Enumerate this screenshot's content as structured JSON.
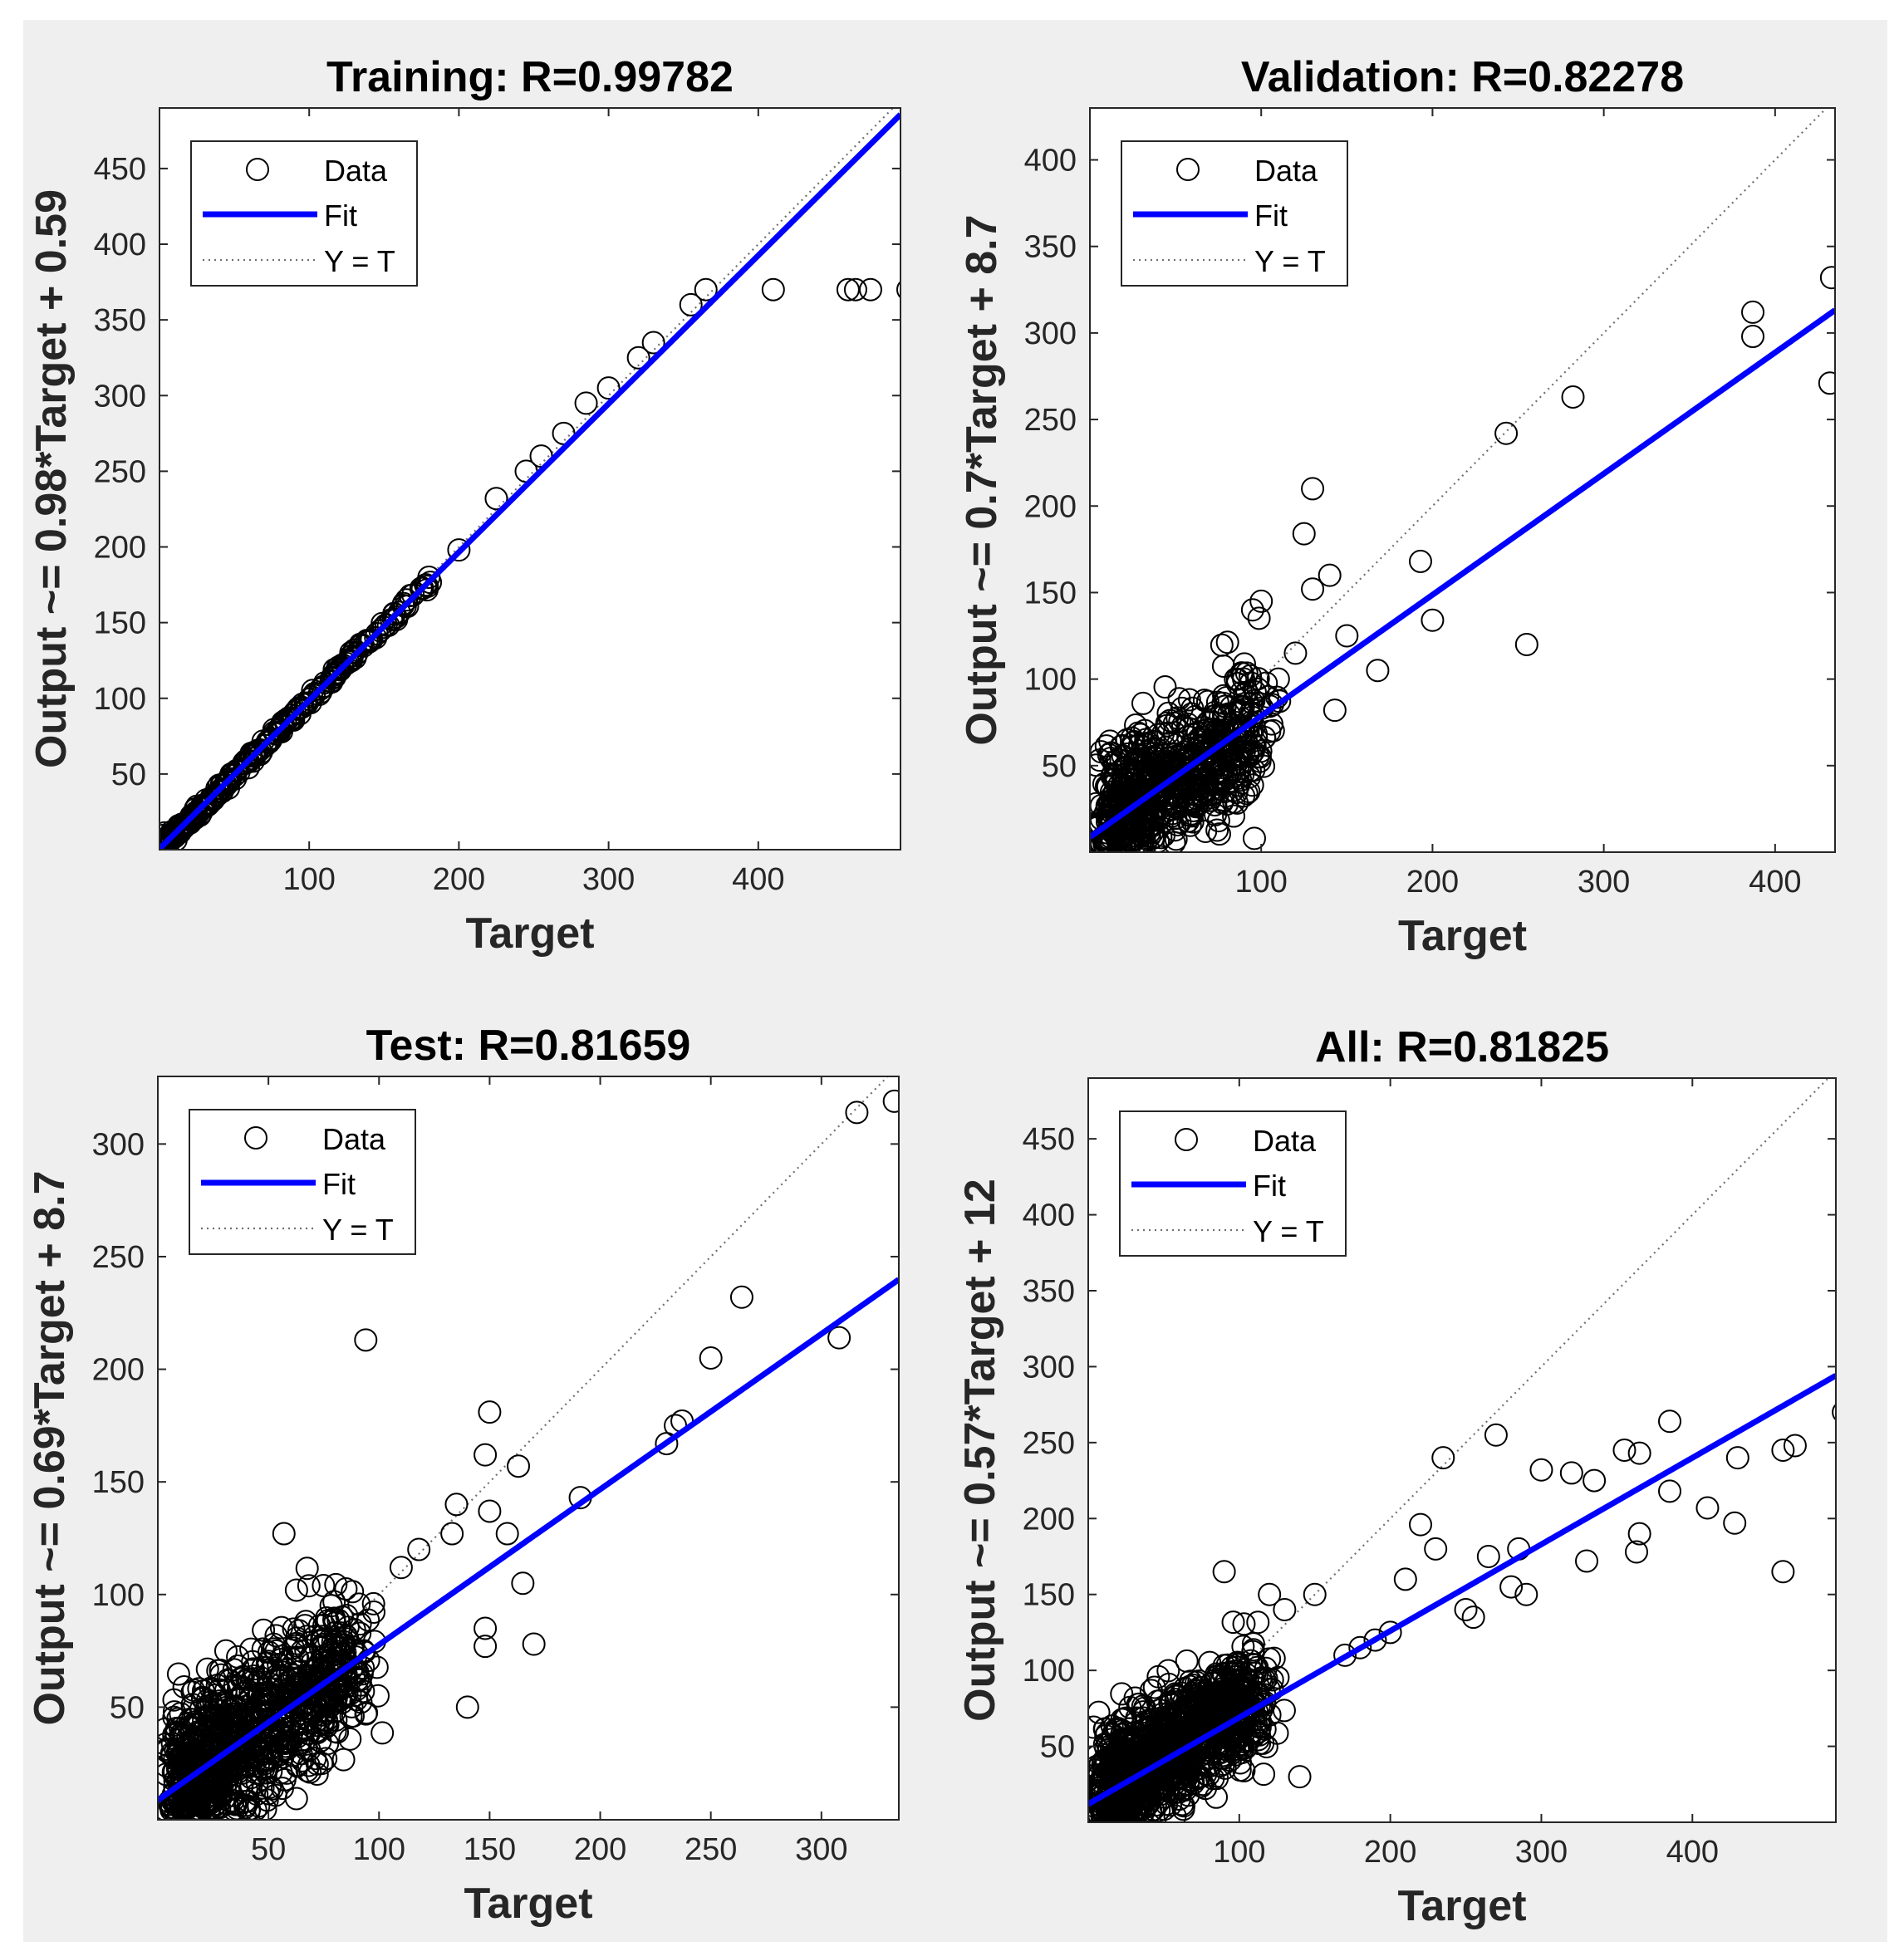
{
  "chart_data": [
    {
      "type": "scatter",
      "id": "training",
      "title": "Training: R=0.99782",
      "xlabel": "Target",
      "ylabel": "Output ~= 0.98*Target + 0.59",
      "xlim": [
        0,
        495
      ],
      "ylim": [
        0,
        490
      ],
      "xticks": [
        100,
        200,
        300,
        400
      ],
      "yticks": [
        50,
        100,
        150,
        200,
        250,
        300,
        350,
        400,
        450
      ],
      "fit": {
        "slope": 0.98,
        "intercept": 0.59,
        "color": "#0000ff"
      },
      "legend": {
        "entries": [
          "Data",
          "Fit",
          "Y = T"
        ],
        "location": "top-left"
      },
      "points": [
        [
          2,
          3
        ],
        [
          5,
          5
        ],
        [
          10,
          10
        ],
        [
          20,
          20
        ],
        [
          35,
          34
        ],
        [
          50,
          49
        ],
        [
          65,
          64
        ],
        [
          80,
          79
        ],
        [
          95,
          94
        ],
        [
          110,
          108
        ],
        [
          125,
          123
        ],
        [
          140,
          138
        ],
        [
          155,
          152
        ],
        [
          165,
          165
        ],
        [
          180,
          180
        ],
        [
          200,
          198
        ],
        [
          225,
          232
        ],
        [
          245,
          250
        ],
        [
          255,
          260
        ],
        [
          270,
          275
        ],
        [
          285,
          295
        ],
        [
          300,
          305
        ],
        [
          320,
          325
        ],
        [
          330,
          335
        ],
        [
          355,
          360
        ],
        [
          365,
          370
        ],
        [
          410,
          370
        ],
        [
          460,
          370
        ],
        [
          465,
          370
        ],
        [
          475,
          370
        ],
        [
          500,
          370
        ]
      ],
      "diag_points": 260,
      "scatter": {
        "outliers": [
          [
            135,
            120
          ],
          [
            150,
            148
          ]
        ]
      }
    },
    {
      "type": "scatter",
      "id": "validation",
      "title": "Validation: R=0.82278",
      "xlabel": "Target",
      "ylabel": "Output ~= 0.7*Target + 8.7",
      "xlim": [
        0,
        435
      ],
      "ylim": [
        0,
        430
      ],
      "xticks": [
        100,
        200,
        300,
        400
      ],
      "yticks": [
        50,
        100,
        150,
        200,
        250,
        300,
        350,
        400
      ],
      "fit": {
        "slope": 0.7,
        "intercept": 8.7,
        "color": "#0000ff"
      },
      "legend": {
        "entries": [
          "Data",
          "Fit",
          "Y = T"
        ],
        "location": "top-left"
      },
      "points": [
        [
          433,
          332
        ],
        [
          387,
          312
        ],
        [
          387,
          298
        ],
        [
          432,
          271
        ],
        [
          282,
          263
        ],
        [
          243,
          242
        ],
        [
          130,
          210
        ],
        [
          125,
          184
        ],
        [
          193,
          168
        ],
        [
          200,
          134
        ],
        [
          255,
          120
        ],
        [
          168,
          105
        ],
        [
          140,
          160
        ],
        [
          130,
          152
        ],
        [
          150,
          125
        ],
        [
          143,
          82
        ],
        [
          100,
          145
        ],
        [
          95,
          140
        ],
        [
          120,
          115
        ],
        [
          110,
          100
        ],
        [
          85,
          100
        ],
        [
          96,
          8
        ]
      ],
      "cluster": {
        "count": 700,
        "cx": 40,
        "cy": 38,
        "sx": 32,
        "sy": 25,
        "corr": 0.6
      }
    },
    {
      "type": "scatter",
      "id": "test",
      "title": "Test: R=0.81659",
      "xlabel": "Target",
      "ylabel": "Output ~= 0.69*Target + 8.7",
      "xlim": [
        0,
        335
      ],
      "ylim": [
        0,
        330
      ],
      "xticks": [
        50,
        100,
        150,
        200,
        250,
        300
      ],
      "yticks": [
        50,
        100,
        150,
        200,
        250,
        300
      ],
      "fit": {
        "slope": 0.69,
        "intercept": 8.7,
        "color": "#0000ff"
      },
      "legend": {
        "entries": [
          "Data",
          "Fit",
          "Y = T"
        ],
        "location": "top-left"
      },
      "points": [
        [
          333,
          319
        ],
        [
          316,
          314
        ],
        [
          264,
          232
        ],
        [
          308,
          214
        ],
        [
          250,
          205
        ],
        [
          237,
          177
        ],
        [
          234,
          175
        ],
        [
          230,
          167
        ],
        [
          191,
          143
        ],
        [
          94,
          213
        ],
        [
          150,
          181
        ],
        [
          148,
          162
        ],
        [
          163,
          157
        ],
        [
          135,
          140
        ],
        [
          150,
          137
        ],
        [
          158,
          127
        ],
        [
          165,
          105
        ],
        [
          170,
          78
        ],
        [
          140,
          50
        ],
        [
          148,
          85
        ],
        [
          148,
          77
        ],
        [
          57,
          127
        ],
        [
          118,
          120
        ],
        [
          110,
          112
        ],
        [
          133,
          127
        ]
      ],
      "cluster": {
        "count": 950,
        "cx": 35,
        "cy": 34,
        "sx": 30,
        "sy": 22,
        "corr": 0.62
      }
    },
    {
      "type": "scatter",
      "id": "all",
      "title": "All: R=0.81825",
      "xlabel": "Target",
      "ylabel": "Output ~= 0.57*Target + 12",
      "xlim": [
        0,
        495
      ],
      "ylim": [
        0,
        490
      ],
      "xticks": [
        100,
        200,
        300,
        400
      ],
      "yticks": [
        50,
        100,
        150,
        200,
        250,
        300,
        350,
        400,
        450
      ],
      "fit": {
        "slope": 0.57,
        "intercept": 12,
        "color": "#0000ff"
      },
      "legend": {
        "entries": [
          "Data",
          "Fit",
          "Y = T"
        ],
        "location": "top-left"
      },
      "points": [
        [
          500,
          270
        ],
        [
          468,
          248
        ],
        [
          460,
          245
        ],
        [
          460,
          165
        ],
        [
          430,
          240
        ],
        [
          428,
          197
        ],
        [
          410,
          207
        ],
        [
          385,
          264
        ],
        [
          385,
          218
        ],
        [
          365,
          243
        ],
        [
          365,
          190
        ],
        [
          363,
          178
        ],
        [
          355,
          245
        ],
        [
          335,
          225
        ],
        [
          330,
          172
        ],
        [
          320,
          230
        ],
        [
          300,
          232
        ],
        [
          290,
          150
        ],
        [
          285,
          180
        ],
        [
          280,
          155
        ],
        [
          270,
          255
        ],
        [
          265,
          175
        ],
        [
          255,
          135
        ],
        [
          250,
          140
        ],
        [
          235,
          240
        ],
        [
          230,
          180
        ],
        [
          220,
          196
        ],
        [
          210,
          160
        ],
        [
          200,
          125
        ],
        [
          190,
          120
        ],
        [
          180,
          115
        ],
        [
          170,
          110
        ],
        [
          140,
          30
        ],
        [
          90,
          165
        ],
        [
          150,
          150
        ],
        [
          130,
          140
        ],
        [
          120,
          150
        ]
      ],
      "cluster": {
        "count": 1100,
        "cx": 45,
        "cy": 38,
        "sx": 40,
        "sy": 25,
        "corr": 0.62
      }
    }
  ],
  "legend_labels": {
    "data": "Data",
    "fit": "Fit",
    "yt": "Y = T"
  }
}
